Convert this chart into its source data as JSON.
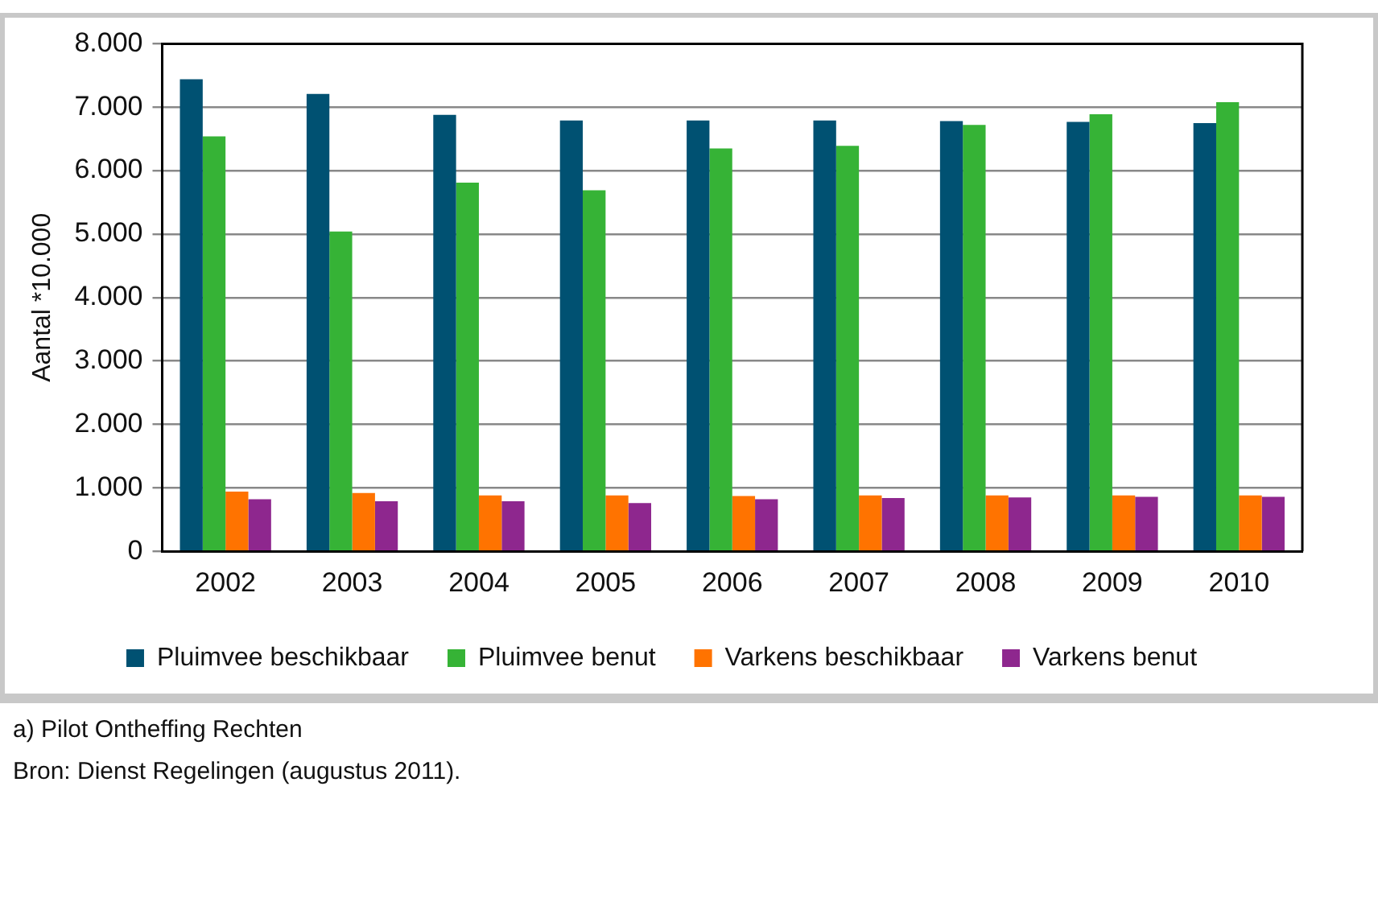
{
  "chart_data": {
    "type": "bar",
    "ylabel": "Aantal *10.000",
    "categories": [
      "2002",
      "2003",
      "2004",
      "2005",
      "2006",
      "2007",
      "2008",
      "2009",
      "2010"
    ],
    "series": [
      {
        "name": "Pluimvee beschikbaar",
        "color": "#005172",
        "values": [
          7440,
          7210,
          6880,
          6790,
          6790,
          6790,
          6780,
          6770,
          6750
        ]
      },
      {
        "name": "Pluimvee benut",
        "color": "#36b336",
        "values": [
          6540,
          5040,
          5810,
          5690,
          6350,
          6390,
          6720,
          6890,
          7080
        ]
      },
      {
        "name": "Varkens beschikbaar",
        "color": "#ff7300",
        "values": [
          940,
          920,
          880,
          880,
          870,
          880,
          880,
          880,
          880
        ]
      },
      {
        "name": "Varkens benut",
        "color": "#8e278e",
        "values": [
          820,
          790,
          790,
          760,
          820,
          840,
          850,
          860,
          860
        ]
      }
    ],
    "ylim": [
      0,
      8000
    ],
    "yticks": [
      0,
      {
        "value": 1000,
        "label": "1.000"
      },
      {
        "value": 2000,
        "label": "2.000"
      },
      {
        "value": 3000,
        "label": "3.000"
      },
      {
        "value": 4000,
        "label": "4.000"
      },
      {
        "value": 5000,
        "label": "5.000"
      },
      {
        "value": 6000,
        "label": "6.000"
      },
      {
        "value": 7000,
        "label": "7.000"
      },
      {
        "value": 8000,
        "label": "8.000"
      }
    ],
    "grid": "y",
    "legend": "bottom",
    "annotations": [
      "a) Pilot Ontheffing Rechten",
      "Bron: Dienst Regelingen (augustus 2011)."
    ]
  }
}
